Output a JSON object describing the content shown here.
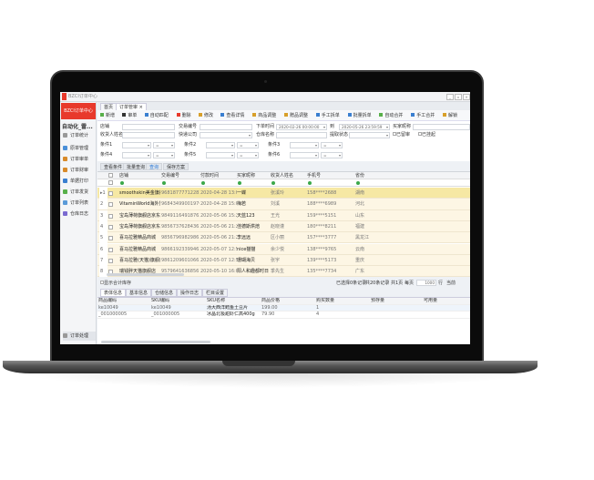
{
  "app": {
    "title": "BZCI订单中心",
    "logo_text": "BZCI订单中心",
    "user": "自动化_雷...",
    "accent": "#e8392b"
  },
  "window_controls": [
    "_",
    "▫",
    "×"
  ],
  "sidebar": {
    "group": "订单统计",
    "items": [
      {
        "label": "原单管理",
        "color": "#4a8fd8"
      },
      {
        "label": "订单审单",
        "color": "#d88a2a"
      },
      {
        "label": "订单财审",
        "color": "#d88a2a"
      },
      {
        "label": "单据打印",
        "color": "#3a7fd0"
      },
      {
        "label": "订单发货",
        "color": "#58b04a"
      },
      {
        "label": "订单列表",
        "color": "#5a9ad8"
      },
      {
        "label": "仓库日志",
        "color": "#7a6ad0"
      }
    ],
    "bottom_item": "订单处理"
  },
  "tabs": [
    {
      "label": "首页"
    },
    {
      "label": "订单管审",
      "close": "×"
    }
  ],
  "toolbar": [
    "新增",
    "审单",
    "自动匹配",
    "删除",
    "修改",
    "查看详情",
    "商品调整",
    "赠品调整",
    "手工拆单",
    "批量拆单",
    "自动合并",
    "手工合并",
    "解锁"
  ],
  "filters": {
    "shop_label": "店铺",
    "trade_no_label": "交易编号",
    "order_time_label": "下单时间",
    "order_time_from": "2020-02-26 00:00:00",
    "to_label": "到",
    "order_time_to": "2020-05-26 23:59:59",
    "buyer_label": "买家昵称",
    "receiver_label": "收货人姓名",
    "express_label": "快递公司",
    "warehouse_label": "仓库名称",
    "status_label": "提取状态",
    "reviewed_label": "已留审",
    "suspended_label": "已挂起",
    "conditions": [
      "条件1",
      "条件2",
      "条件3",
      "条件4",
      "条件5",
      "条件6"
    ],
    "operator": "="
  },
  "query_buttons": [
    "查看条件",
    "批量查询",
    "查询",
    "保存方案"
  ],
  "grid": {
    "columns": [
      "店铺",
      "交易编号",
      "付款时间",
      "买家昵称",
      "收货人姓名",
      "手机号",
      "省份"
    ],
    "rows": [
      [
        "smoothskin美金旗舰店",
        "968187777122823480",
        "2020-04-28 13:00:47",
        "一蝶",
        "张溪玲",
        "158****2688",
        "湖南"
      ],
      [
        "VitaminWorld海外旗舰",
        "968434990019768357",
        "2020-04-28 15:04:18",
        "梅若",
        "刘溪",
        "188****6989",
        "河北"
      ],
      [
        "宝岛薄荷旗舰店京东",
        "984911649187623480",
        "2020-05-06 15:22:13",
        "天蓝123",
        "王光",
        "159****5151",
        "山东"
      ],
      [
        "宝岛薄荷旗舰店京东",
        "985673762843633480",
        "2020-05-06 21:20:27",
        "佳德斯烘焙",
        "赵晓谨",
        "180****8211",
        "福建"
      ],
      [
        "喜马拉雅精品商城",
        "985679698298633480",
        "2020-05-06 21:20:45",
        "李远远",
        "区小丽",
        "157****3777",
        "黑龙江"
      ],
      [
        "喜马拉雅精品商城",
        "986619233994623480",
        "2020-05-07 12:51:07",
        "nice猫猫",
        "余少悦",
        "138****9765",
        "云南"
      ],
      [
        "喜马拉雅(天猫)旗舰店",
        "986120960106633480",
        "2020-05-07 12:51:24",
        "珊瑚海贝",
        "张宇",
        "139****5173",
        "重庆"
      ],
      [
        "瑞钱胖天猫旗舰店",
        "957964163685673480",
        "2020-05-10 16:09:17",
        "阳人和趣都时日",
        "季先生",
        "135****7734",
        "广东"
      ]
    ]
  },
  "pager": {
    "show_stock": "显示合计库存",
    "selected": "已选择0条记录",
    "total": "共20条记录",
    "pages": "共1页",
    "per_page_label": "每页",
    "per_page": "1000",
    "rows_label": "行",
    "current": "当前"
  },
  "detail": {
    "tabs": [
      "表体信息",
      "基本信息",
      "仓储信息",
      "操作日志",
      "栏目设置"
    ],
    "columns": [
      "商品编码",
      "SKU编码",
      "SKU名称",
      "商品价格",
      "购买数量",
      "预存量",
      "可用量"
    ],
    "rows": [
      [
        "ke10049",
        "ke10049",
        "汤大西洋鳕鱼土豆片",
        "199.00",
        "1",
        "",
        ""
      ],
      [
        "_001000005",
        "_001000005",
        "冰晶北极甜虾仁高400g",
        "79.90",
        "4",
        "",
        ""
      ]
    ]
  }
}
